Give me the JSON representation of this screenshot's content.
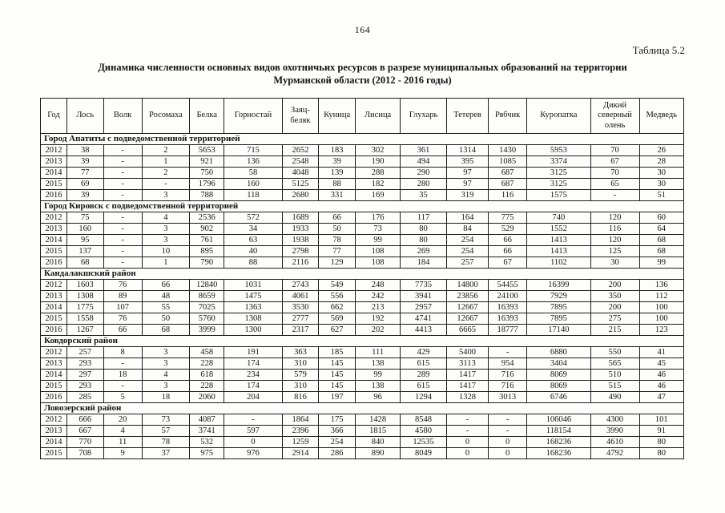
{
  "header": {
    "page_number": "164",
    "table_label": "Таблица 5.2",
    "title_line1": "Динамика численности основных видов охотничьих ресурсов в разрезе муниципальных образований на территории",
    "title_line2": "Мурманской области (2012 - 2016 годы)"
  },
  "table": {
    "columns": [
      "Год",
      "Лось",
      "Волк",
      "Росомаха",
      "Белка",
      "Горностай",
      "Заяц-беляк",
      "Куница",
      "Лисица",
      "Глухарь",
      "Тетерев",
      "Рябчик",
      "Куропатка",
      "Дикий северный олень",
      "Медведь"
    ],
    "sections": [
      {
        "name": "Город Апатиты с подведомственной территорией",
        "rows": [
          [
            "2012",
            "38",
            "-",
            "2",
            "5653",
            "715",
            "2652",
            "183",
            "302",
            "361",
            "1314",
            "1430",
            "5953",
            "70",
            "26"
          ],
          [
            "2013",
            "39",
            "-",
            "1",
            "921",
            "136",
            "2548",
            "39",
            "190",
            "494",
            "395",
            "1085",
            "3374",
            "67",
            "28"
          ],
          [
            "2014",
            "77",
            "-",
            "2",
            "750",
            "58",
            "4048",
            "139",
            "288",
            "290",
            "97",
            "687",
            "3125",
            "70",
            "30"
          ],
          [
            "2015",
            "69",
            "-",
            "-",
            "1796",
            "160",
            "5125",
            "88",
            "182",
            "280",
            "97",
            "687",
            "3125",
            "65",
            "30"
          ],
          [
            "2016",
            "39",
            "-",
            "3",
            "788",
            "118",
            "2680",
            "331",
            "169",
            "35",
            "319",
            "116",
            "1575",
            "-",
            "51"
          ]
        ]
      },
      {
        "name": "Город Кировск с подведомственной территорией",
        "rows": [
          [
            "2012",
            "75",
            "-",
            "4",
            "2536",
            "572",
            "1689",
            "66",
            "176",
            "117",
            "164",
            "775",
            "740",
            "120",
            "60"
          ],
          [
            "2013",
            "160",
            "-",
            "3",
            "902",
            "34",
            "1933",
            "50",
            "73",
            "80",
            "84",
            "529",
            "1552",
            "116",
            "64"
          ],
          [
            "2014",
            "95",
            "-",
            "3",
            "761",
            "63",
            "1938",
            "78",
            "99",
            "80",
            "254",
            "66",
            "1413",
            "120",
            "68"
          ],
          [
            "2015",
            "137",
            "-",
            "10",
            "895",
            "40",
            "2798",
            "77",
            "108",
            "269",
            "254",
            "66",
            "1413",
            "125",
            "68"
          ],
          [
            "2016",
            "68",
            "-",
            "1",
            "790",
            "88",
            "2116",
            "129",
            "108",
            "184",
            "257",
            "67",
            "1102",
            "30",
            "99"
          ]
        ]
      },
      {
        "name": "Кандалакшский район",
        "rows": [
          [
            "2012",
            "1603",
            "76",
            "66",
            "12840",
            "1031",
            "2743",
            "549",
            "248",
            "7735",
            "14800",
            "54455",
            "16399",
            "200",
            "136"
          ],
          [
            "2013",
            "1308",
            "89",
            "48",
            "8659",
            "1475",
            "4061",
            "556",
            "242",
            "3941",
            "23856",
            "24100",
            "7929",
            "350",
            "112"
          ],
          [
            "2014",
            "1775",
            "107",
            "55",
            "7025",
            "1363",
            "3530",
            "662",
            "213",
            "2957",
            "12667",
            "16393",
            "7895",
            "200",
            "100"
          ],
          [
            "2015",
            "1558",
            "76",
            "50",
            "5760",
            "1308",
            "2777",
            "569",
            "192",
            "4741",
            "12667",
            "16393",
            "7895",
            "275",
            "100"
          ],
          [
            "2016",
            "1267",
            "66",
            "68",
            "3999",
            "1300",
            "2317",
            "627",
            "202",
            "4413",
            "6665",
            "18777",
            "17140",
            "215",
            "123"
          ]
        ]
      },
      {
        "name": "Ковдорский район",
        "rows": [
          [
            "2012",
            "257",
            "8",
            "3",
            "458",
            "191",
            "363",
            "185",
            "111",
            "429",
            "5400",
            "-",
            "6880",
            "550",
            "41"
          ],
          [
            "2013",
            "293",
            "-",
            "3",
            "228",
            "174",
            "310",
            "145",
            "138",
            "615",
            "3113",
            "954",
            "3404",
            "565",
            "45"
          ],
          [
            "2014",
            "297",
            "18",
            "4",
            "618",
            "234",
            "579",
            "145",
            "99",
            "289",
            "1417",
            "716",
            "8069",
            "510",
            "46"
          ],
          [
            "2015",
            "293",
            "-",
            "3",
            "228",
            "174",
            "310",
            "145",
            "138",
            "615",
            "1417",
            "716",
            "8069",
            "515",
            "46"
          ],
          [
            "2016",
            "285",
            "5",
            "18",
            "2060",
            "204",
            "816",
            "197",
            "96",
            "1294",
            "1328",
            "3013",
            "6746",
            "490",
            "47"
          ]
        ]
      },
      {
        "name": "Ловозерский район",
        "rows": [
          [
            "2012",
            "666",
            "20",
            "73",
            "4087",
            "-",
            "1864",
            "175",
            "1428",
            "8548",
            "-",
            "-",
            "106046",
            "4300",
            "101"
          ],
          [
            "2013",
            "667",
            "4",
            "57",
            "3741",
            "597",
            "2396",
            "366",
            "1815",
            "4580",
            "-",
            "-",
            "118154",
            "3990",
            "91"
          ],
          [
            "2014",
            "770",
            "11",
            "78",
            "532",
            "0",
            "1259",
            "254",
            "840",
            "12535",
            "0",
            "0",
            "168236",
            "4610",
            "80"
          ],
          [
            "2015",
            "708",
            "9",
            "37",
            "975",
            "976",
            "2914",
            "286",
            "890",
            "8049",
            "0",
            "0",
            "168236",
            "4792",
            "80"
          ]
        ]
      }
    ]
  }
}
